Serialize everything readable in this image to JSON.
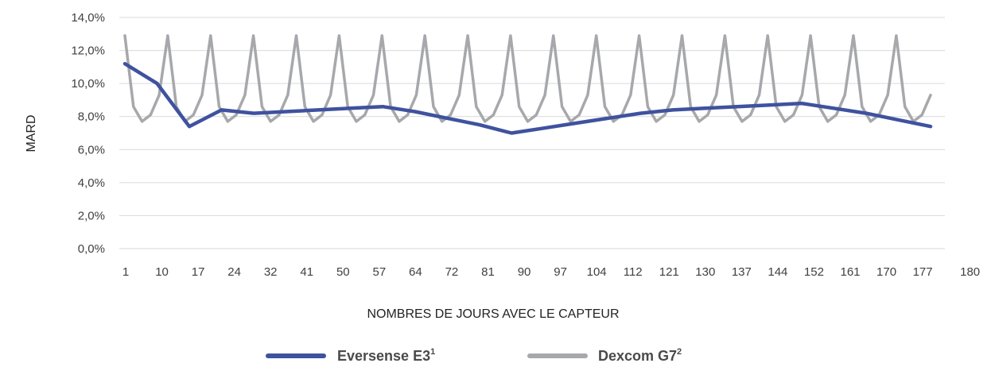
{
  "chart_data": {
    "type": "line",
    "xlabel": "NOMBRES DE JOURS AVEC LE CAPTEUR",
    "ylabel": "MARD",
    "yticks": [
      "0,0%",
      "2,0%",
      "4,0%",
      "6,0%",
      "8,0%",
      "10,0%",
      "12,0%",
      "14,0%"
    ],
    "ylim": [
      0,
      14
    ],
    "xticks": [
      "1",
      "10",
      "17",
      "24",
      "32",
      "41",
      "50",
      "57",
      "64",
      "72",
      "81",
      "90",
      "97",
      "104",
      "112",
      "121",
      "130",
      "137",
      "144",
      "152",
      "161",
      "170",
      "177",
      "180"
    ],
    "grid": true,
    "legend_position": "bottom",
    "series": [
      {
        "name": "Eversense E3",
        "name_sup": "1",
        "color": "#3f529f",
        "points": [
          [
            1,
            11.2
          ],
          [
            10,
            10.0
          ],
          [
            17,
            7.4
          ],
          [
            24,
            8.4
          ],
          [
            32,
            8.2
          ],
          [
            41,
            8.3
          ],
          [
            50,
            8.4
          ],
          [
            57,
            8.5
          ],
          [
            64,
            8.6
          ],
          [
            72,
            8.3
          ],
          [
            81,
            7.9
          ],
          [
            90,
            7.5
          ],
          [
            97,
            7.0
          ],
          [
            104,
            7.3
          ],
          [
            112,
            7.6
          ],
          [
            121,
            7.9
          ],
          [
            130,
            8.2
          ],
          [
            137,
            8.4
          ],
          [
            144,
            8.5
          ],
          [
            152,
            8.6
          ],
          [
            161,
            8.7
          ],
          [
            170,
            8.8
          ],
          [
            177,
            8.5
          ],
          [
            186,
            8.2
          ],
          [
            196,
            7.8
          ],
          [
            204,
            7.4
          ]
        ]
      },
      {
        "name": "Dexcom G7",
        "name_sup": "2",
        "color": "#a6a8ab",
        "values": [
          12.9,
          8.6,
          7.7,
          8.1,
          9.3,
          12.9,
          8.6,
          7.7,
          8.1,
          9.3,
          12.9,
          8.6,
          7.7,
          8.1,
          9.3,
          12.9,
          8.6,
          7.7,
          8.1,
          9.3,
          12.9,
          8.6,
          7.7,
          8.1,
          9.3,
          12.9,
          8.6,
          7.7,
          8.1,
          9.3,
          12.9,
          8.6,
          7.7,
          8.1,
          9.3,
          12.9,
          8.6,
          7.7,
          8.1,
          9.3,
          12.9,
          8.6,
          7.7,
          8.1,
          9.3,
          12.9,
          8.6,
          7.7,
          8.1,
          9.3,
          12.9,
          8.6,
          7.7,
          8.1,
          9.3,
          12.9,
          8.6,
          7.7,
          8.1,
          9.3,
          12.9,
          8.6,
          7.7,
          8.1,
          9.3,
          12.9,
          8.6,
          7.7,
          8.1,
          9.3,
          12.9,
          8.6,
          7.7,
          8.1,
          9.3,
          12.9,
          8.6,
          7.7,
          8.1,
          9.3,
          12.9,
          8.6,
          7.7,
          8.1,
          9.3,
          12.9,
          8.6,
          7.7,
          8.1,
          9.3,
          12.9,
          8.6,
          7.7,
          8.1,
          9.3
        ]
      }
    ]
  }
}
